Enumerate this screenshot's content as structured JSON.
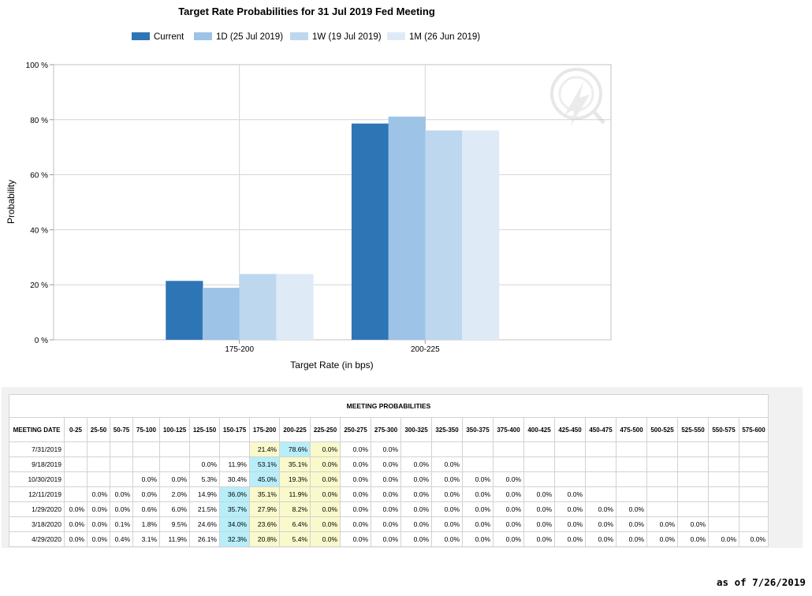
{
  "chart_data": {
    "type": "bar",
    "title": "Target Rate Probabilities for 31 Jul 2019 Fed Meeting",
    "xlabel": "Target Rate (in bps)",
    "ylabel": "Probability",
    "categories": [
      "175-200",
      "200-225"
    ],
    "series": [
      {
        "name": "Current",
        "color": "#2e75b6",
        "values": [
          21.4,
          78.6
        ]
      },
      {
        "name": "1D (25 Jul 2019)",
        "color": "#9dc3e6",
        "values": [
          18.9,
          81.1
        ]
      },
      {
        "name": "1W (19 Jul 2019)",
        "color": "#bdd7ee",
        "values": [
          23.9,
          76.1
        ]
      },
      {
        "name": "1M (26 Jun 2019)",
        "color": "#deebf7",
        "values": [
          23.9,
          76.1
        ]
      }
    ],
    "ylim": [
      0,
      100
    ],
    "yticks": [
      "0 %",
      "20 %",
      "40 %",
      "60 %",
      "80 %",
      "100 %"
    ],
    "grid": true,
    "legend": "top"
  },
  "table": {
    "title": "MEETING PROBABILITIES",
    "headers": [
      "MEETING DATE",
      "0-25",
      "25-50",
      "50-75",
      "75-100",
      "100-125",
      "125-150",
      "150-175",
      "175-200",
      "200-225",
      "225-250",
      "250-275",
      "275-300",
      "300-325",
      "325-350",
      "350-375",
      "375-400",
      "400-425",
      "425-450",
      "450-475",
      "475-500",
      "500-525",
      "525-550",
      "550-575",
      "575-600"
    ],
    "rows": [
      [
        "7/31/2019",
        "",
        "",
        "",
        "",
        "",
        "",
        "",
        "21.4%",
        "78.6%",
        "0.0%",
        "0.0%",
        "0.0%",
        "",
        "",
        "",
        "",
        "",
        "",
        "",
        "",
        "",
        "",
        "",
        ""
      ],
      [
        "9/18/2019",
        "",
        "",
        "",
        "",
        "",
        "0.0%",
        "11.9%",
        "53.1%",
        "35.1%",
        "0.0%",
        "0.0%",
        "0.0%",
        "0.0%",
        "0.0%",
        "",
        "",
        "",
        "",
        "",
        "",
        "",
        "",
        "",
        ""
      ],
      [
        "10/30/2019",
        "",
        "",
        "",
        "0.0%",
        "0.0%",
        "5.3%",
        "30.4%",
        "45.0%",
        "19.3%",
        "0.0%",
        "0.0%",
        "0.0%",
        "0.0%",
        "0.0%",
        "0.0%",
        "0.0%",
        "",
        "",
        "",
        "",
        "",
        "",
        "",
        ""
      ],
      [
        "12/11/2019",
        "",
        "0.0%",
        "0.0%",
        "0.0%",
        "2.0%",
        "14.9%",
        "36.0%",
        "35.1%",
        "11.9%",
        "0.0%",
        "0.0%",
        "0.0%",
        "0.0%",
        "0.0%",
        "0.0%",
        "0.0%",
        "0.0%",
        "0.0%",
        "",
        "",
        "",
        "",
        "",
        ""
      ],
      [
        "1/29/2020",
        "0.0%",
        "0.0%",
        "0.0%",
        "0.6%",
        "6.0%",
        "21.5%",
        "35.7%",
        "27.9%",
        "8.2%",
        "0.0%",
        "0.0%",
        "0.0%",
        "0.0%",
        "0.0%",
        "0.0%",
        "0.0%",
        "0.0%",
        "0.0%",
        "0.0%",
        "0.0%",
        "",
        "",
        "",
        ""
      ],
      [
        "3/18/2020",
        "0.0%",
        "0.0%",
        "0.1%",
        "1.8%",
        "9.5%",
        "24.6%",
        "34.0%",
        "23.6%",
        "6.4%",
        "0.0%",
        "0.0%",
        "0.0%",
        "0.0%",
        "0.0%",
        "0.0%",
        "0.0%",
        "0.0%",
        "0.0%",
        "0.0%",
        "0.0%",
        "0.0%",
        "0.0%",
        "",
        ""
      ],
      [
        "4/29/2020",
        "0.0%",
        "0.0%",
        "0.4%",
        "3.1%",
        "11.9%",
        "26.1%",
        "32.3%",
        "20.8%",
        "5.4%",
        "0.0%",
        "0.0%",
        "0.0%",
        "0.0%",
        "0.0%",
        "0.0%",
        "0.0%",
        "0.0%",
        "0.0%",
        "0.0%",
        "0.0%",
        "0.0%",
        "0.0%",
        "0.0%",
        "0.0%"
      ]
    ],
    "highlight": {
      "blue": [
        [
          0,
          9
        ],
        [
          1,
          8
        ],
        [
          2,
          8
        ],
        [
          3,
          7
        ],
        [
          4,
          7
        ],
        [
          5,
          7
        ],
        [
          6,
          7
        ]
      ],
      "yellow_cols": [
        8,
        9,
        10
      ]
    }
  },
  "as_of": "as of 7/26/2019"
}
